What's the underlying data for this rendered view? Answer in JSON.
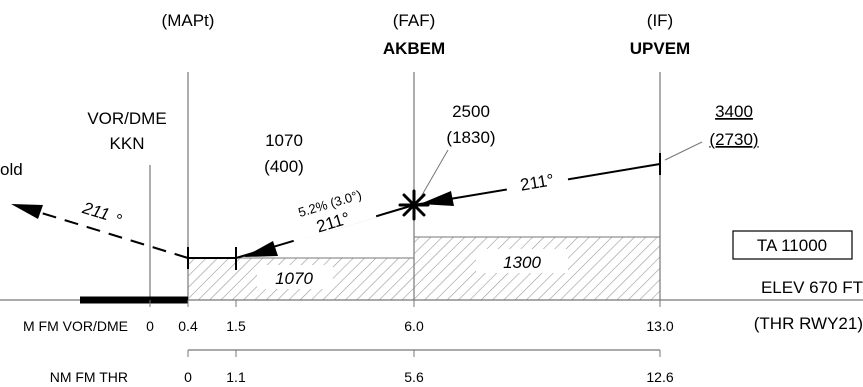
{
  "fixes": {
    "mapt": {
      "role": "(MAPt)"
    },
    "faf": {
      "role": "(FAF)",
      "name": "AKBEM"
    },
    "if": {
      "role": "(IF)",
      "name": "UPVEM"
    }
  },
  "navaid": {
    "type": "VOR/DME",
    "ident": "KKN"
  },
  "missed": {
    "label": "old",
    "track": "211",
    "degree": "°"
  },
  "altitudes": {
    "mapt": {
      "alt": "1070",
      "height": "(400)"
    },
    "faf": {
      "alt": "2500",
      "height": "(1830)"
    },
    "if": {
      "alt": "3400",
      "height": "(2730)"
    }
  },
  "descent": {
    "gradient": "5.2% (3.0°)",
    "track": "211°"
  },
  "initial": {
    "track": "211°"
  },
  "oca_boxes": {
    "final": "1070",
    "intermediate": "1300"
  },
  "ta": "TA 11000",
  "elev": "ELEV 670 FT",
  "thr": "(THR RWY21)",
  "scales": {
    "vor_label": "M FM VOR/DME",
    "vor_ticks": [
      "0",
      "0.4",
      "1.5",
      "6.0",
      "13.0"
    ],
    "thr_label": "NM FM THR",
    "thr_ticks": [
      "0",
      "1.1",
      "5.6",
      "12.6"
    ]
  },
  "colors": {
    "ink": "#000000",
    "guide": "#777777",
    "hatch": "#999999",
    "background": "#ffffff"
  }
}
